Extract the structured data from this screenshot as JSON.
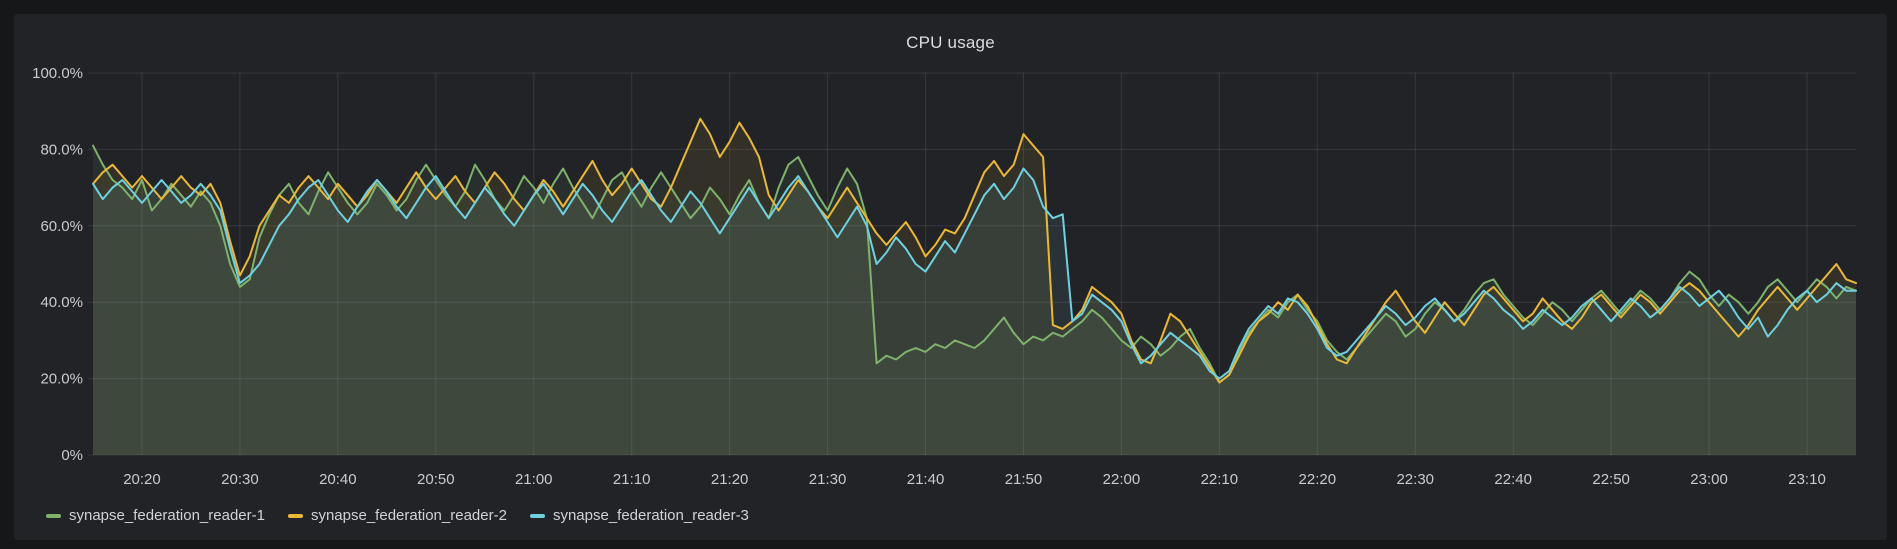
{
  "panel": {
    "title": "CPU usage"
  },
  "colors": {
    "page_background": "#161719",
    "panel_background": "#222327",
    "grid": "rgba(204,204,220,0.12)",
    "axis_text": "#c9cad1",
    "title_text": "#dbdcdf"
  },
  "chart_data": {
    "type": "line",
    "title": "CPU usage",
    "xlabel": "",
    "ylabel": "",
    "ylim": [
      0,
      100
    ],
    "grid": true,
    "legend_position": "bottom-left",
    "x_unit": "time",
    "x_start_label": "20:15",
    "x_end_label": "23:15",
    "x_range_minutes": 180,
    "y_ticks": [
      {
        "v": 0,
        "label": "0%"
      },
      {
        "v": 20,
        "label": "20.0%"
      },
      {
        "v": 40,
        "label": "40.0%"
      },
      {
        "v": 60,
        "label": "60.0%"
      },
      {
        "v": 80,
        "label": "80.0%"
      },
      {
        "v": 100,
        "label": "100.0%"
      }
    ],
    "x_ticks": [
      {
        "t": 5,
        "label": "20:20"
      },
      {
        "t": 15,
        "label": "20:30"
      },
      {
        "t": 25,
        "label": "20:40"
      },
      {
        "t": 35,
        "label": "20:50"
      },
      {
        "t": 45,
        "label": "21:00"
      },
      {
        "t": 55,
        "label": "21:10"
      },
      {
        "t": 65,
        "label": "21:20"
      },
      {
        "t": 75,
        "label": "21:30"
      },
      {
        "t": 85,
        "label": "21:40"
      },
      {
        "t": 95,
        "label": "21:50"
      },
      {
        "t": 105,
        "label": "22:00"
      },
      {
        "t": 115,
        "label": "22:10"
      },
      {
        "t": 125,
        "label": "22:20"
      },
      {
        "t": 135,
        "label": "22:30"
      },
      {
        "t": 145,
        "label": "22:40"
      },
      {
        "t": 155,
        "label": "22:50"
      },
      {
        "t": 165,
        "label": "23:00"
      },
      {
        "t": 175,
        "label": "23:10"
      }
    ],
    "series": [
      {
        "name": "synapse_federation_reader-1",
        "color": "#7EB26D",
        "fill_opacity": 0.09,
        "step_minutes": 1,
        "values": [
          81,
          76,
          72,
          70,
          67,
          72,
          64,
          67,
          71,
          68,
          65,
          69,
          66,
          60,
          50,
          44,
          46,
          57,
          63,
          68,
          71,
          66,
          63,
          69,
          74,
          70,
          66,
          63,
          66,
          71,
          68,
          64,
          67,
          72,
          76,
          72,
          68,
          65,
          69,
          76,
          72,
          67,
          64,
          68,
          73,
          70,
          66,
          71,
          75,
          70,
          66,
          62,
          67,
          72,
          74,
          69,
          65,
          70,
          74,
          70,
          66,
          62,
          65,
          70,
          67,
          63,
          68,
          72,
          66,
          62,
          70,
          76,
          78,
          73,
          68,
          64,
          70,
          75,
          71,
          62,
          24,
          26,
          25,
          27,
          28,
          27,
          29,
          28,
          30,
          29,
          28,
          30,
          33,
          36,
          32,
          29,
          31,
          30,
          32,
          31,
          33,
          35,
          38,
          36,
          33,
          30,
          28,
          31,
          29,
          26,
          28,
          31,
          33,
          28,
          24,
          19,
          21,
          27,
          32,
          35,
          38,
          36,
          40,
          42,
          38,
          35,
          30,
          27,
          25,
          28,
          31,
          34,
          37,
          35,
          31,
          33,
          37,
          40,
          38,
          35,
          38,
          42,
          45,
          46,
          42,
          39,
          36,
          34,
          37,
          40,
          38,
          35,
          38,
          41,
          43,
          40,
          37,
          40,
          43,
          41,
          38,
          41,
          45,
          48,
          46,
          42,
          39,
          42,
          40,
          37,
          40,
          44,
          46,
          43,
          40,
          43,
          46,
          44,
          41,
          44,
          43
        ]
      },
      {
        "name": "synapse_federation_reader-2",
        "color": "#EAB839",
        "fill_opacity": 0.09,
        "step_minutes": 1,
        "values": [
          71,
          74,
          76,
          73,
          70,
          73,
          70,
          67,
          70,
          73,
          70,
          68,
          71,
          66,
          56,
          47,
          52,
          60,
          64,
          68,
          66,
          70,
          73,
          70,
          67,
          71,
          68,
          65,
          68,
          72,
          69,
          66,
          70,
          74,
          70,
          67,
          70,
          73,
          69,
          66,
          70,
          74,
          71,
          67,
          64,
          68,
          72,
          69,
          65,
          69,
          73,
          77,
          72,
          68,
          71,
          75,
          71,
          67,
          65,
          70,
          76,
          82,
          88,
          84,
          78,
          82,
          87,
          83,
          78,
          68,
          64,
          68,
          72,
          69,
          65,
          62,
          66,
          70,
          66,
          62,
          58,
          55,
          58,
          61,
          57,
          52,
          55,
          59,
          58,
          62,
          68,
          74,
          77,
          73,
          76,
          84,
          81,
          78,
          34,
          33,
          35,
          38,
          44,
          42,
          40,
          37,
          30,
          25,
          24,
          30,
          37,
          35,
          31,
          27,
          23,
          19,
          21,
          26,
          31,
          35,
          37,
          40,
          38,
          42,
          39,
          34,
          29,
          25,
          24,
          28,
          32,
          36,
          40,
          43,
          39,
          35,
          32,
          36,
          40,
          37,
          34,
          38,
          42,
          44,
          41,
          38,
          35,
          37,
          41,
          38,
          35,
          33,
          36,
          40,
          42,
          39,
          36,
          39,
          42,
          40,
          37,
          40,
          43,
          45,
          43,
          40,
          37,
          34,
          31,
          34,
          38,
          41,
          44,
          41,
          38,
          41,
          44,
          47,
          50,
          46,
          45
        ]
      },
      {
        "name": "synapse_federation_reader-3",
        "color": "#6ED0E0",
        "fill_opacity": 0.09,
        "step_minutes": 1,
        "values": [
          71,
          67,
          70,
          72,
          69,
          66,
          69,
          72,
          69,
          66,
          68,
          71,
          68,
          64,
          54,
          45,
          47,
          50,
          55,
          60,
          63,
          67,
          70,
          72,
          68,
          64,
          61,
          65,
          69,
          72,
          69,
          65,
          62,
          66,
          70,
          73,
          69,
          65,
          62,
          66,
          70,
          67,
          63,
          60,
          64,
          68,
          71,
          67,
          63,
          67,
          71,
          68,
          64,
          61,
          65,
          69,
          72,
          68,
          64,
          61,
          65,
          69,
          66,
          62,
          58,
          62,
          66,
          70,
          66,
          62,
          66,
          70,
          73,
          69,
          65,
          61,
          57,
          61,
          65,
          60,
          50,
          53,
          57,
          54,
          50,
          48,
          52,
          56,
          53,
          58,
          63,
          68,
          71,
          67,
          70,
          75,
          72,
          65,
          62,
          63,
          35,
          37,
          42,
          40,
          38,
          35,
          29,
          24,
          26,
          29,
          32,
          30,
          28,
          26,
          22,
          20,
          22,
          28,
          33,
          36,
          39,
          37,
          41,
          40,
          37,
          33,
          28,
          26,
          27,
          30,
          33,
          36,
          39,
          37,
          34,
          36,
          39,
          41,
          38,
          35,
          37,
          40,
          43,
          41,
          38,
          36,
          33,
          35,
          38,
          36,
          34,
          36,
          39,
          41,
          38,
          35,
          38,
          41,
          39,
          36,
          38,
          41,
          44,
          42,
          39,
          41,
          43,
          40,
          36,
          33,
          36,
          31,
          34,
          38,
          41,
          43,
          40,
          42,
          45,
          43,
          43
        ]
      }
    ]
  }
}
